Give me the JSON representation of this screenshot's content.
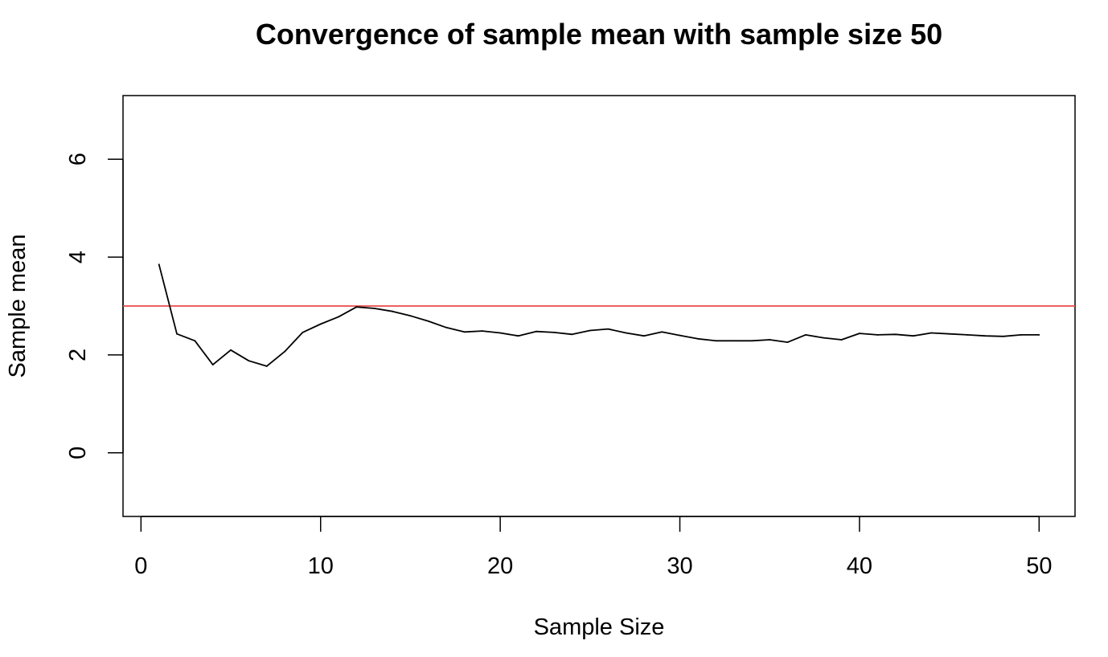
{
  "chart_data": {
    "type": "line",
    "title": "Convergence of sample mean with sample size 50",
    "xlabel": "Sample Size",
    "ylabel": "Sample mean",
    "xlim": [
      -1,
      52
    ],
    "ylim": [
      -1.3,
      7.3
    ],
    "x_ticks": [
      0,
      10,
      20,
      30,
      40,
      50
    ],
    "y_ticks": [
      0,
      2,
      4,
      6
    ],
    "grid": false,
    "colors": {
      "series": "#000000",
      "reference": "#e84a4a",
      "frame": "#000000"
    },
    "series": [
      {
        "x": [
          1,
          2,
          3,
          4,
          5,
          6,
          7,
          8,
          9,
          10,
          11,
          12,
          13,
          14,
          15,
          16,
          17,
          18,
          19,
          20,
          21,
          22,
          23,
          24,
          25,
          26,
          27,
          28,
          29,
          30,
          31,
          32,
          33,
          34,
          35,
          36,
          37,
          38,
          39,
          40,
          41,
          42,
          43,
          44,
          45,
          46,
          47,
          48,
          49,
          50
        ],
        "values": [
          3.85,
          2.43,
          2.29,
          1.8,
          2.1,
          1.88,
          1.77,
          2.07,
          2.46,
          2.63,
          2.78,
          2.98,
          2.95,
          2.89,
          2.8,
          2.69,
          2.56,
          2.47,
          2.49,
          2.45,
          2.39,
          2.48,
          2.46,
          2.42,
          2.5,
          2.53,
          2.45,
          2.39,
          2.47,
          2.4,
          2.33,
          2.29,
          2.29,
          2.29,
          2.31,
          2.26,
          2.41,
          2.35,
          2.31,
          2.44,
          2.41,
          2.42,
          2.39,
          2.45,
          2.43,
          2.41,
          2.39,
          2.38,
          2.41,
          2.41
        ],
        "color": "#000000"
      }
    ],
    "reference_lines": [
      {
        "orientation": "horizontal",
        "y": 3,
        "color": "#e84a4a"
      }
    ]
  }
}
